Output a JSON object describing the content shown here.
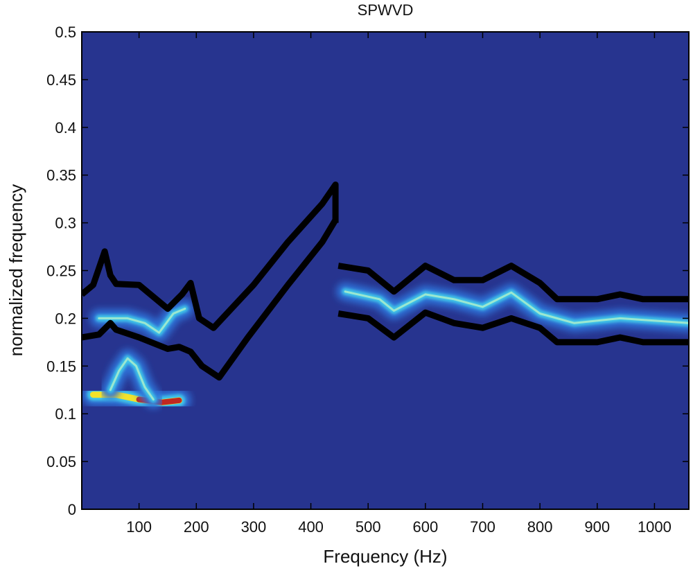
{
  "chart_data": {
    "type": "heatmap",
    "title": "SPWVD",
    "xlabel": "Frequency (Hz)",
    "ylabel": "normalized frequency",
    "xlim": [
      0,
      1060
    ],
    "ylim": [
      0,
      0.5
    ],
    "xticks": [
      100,
      200,
      300,
      400,
      500,
      600,
      700,
      800,
      900,
      1000
    ],
    "xtick_labels": [
      "100",
      "200",
      "300",
      "400",
      "500",
      "600",
      "700",
      "800",
      "900",
      "1000"
    ],
    "yticks": [
      0,
      0.05,
      0.1,
      0.15,
      0.2,
      0.25,
      0.3,
      0.35,
      0.4,
      0.45,
      0.5
    ],
    "ytick_labels": [
      "0",
      "0.05",
      "0.1",
      "0.15",
      "0.2",
      "0.25",
      "0.3",
      "0.35",
      "0.4",
      "0.45",
      "0.5"
    ],
    "colormap": "jet",
    "background_color": "#27348f",
    "grid": false,
    "energy_ridges": [
      {
        "points": [
          [
            20,
            0.12
          ],
          [
            60,
            0.12
          ],
          [
            100,
            0.115
          ],
          [
            140,
            0.112
          ],
          [
            170,
            0.114
          ]
        ],
        "intensity": 1.0
      },
      {
        "points": [
          [
            50,
            0.125
          ],
          [
            65,
            0.145
          ],
          [
            80,
            0.158
          ],
          [
            95,
            0.15
          ],
          [
            110,
            0.128
          ],
          [
            125,
            0.115
          ]
        ],
        "intensity": 0.55
      },
      {
        "points": [
          [
            30,
            0.2
          ],
          [
            80,
            0.2
          ],
          [
            110,
            0.195
          ],
          [
            135,
            0.185
          ],
          [
            160,
            0.205
          ],
          [
            180,
            0.21
          ]
        ],
        "intensity": 0.5
      },
      {
        "points": [
          [
            460,
            0.228
          ],
          [
            520,
            0.22
          ],
          [
            545,
            0.208
          ],
          [
            600,
            0.225
          ],
          [
            650,
            0.22
          ],
          [
            700,
            0.212
          ],
          [
            750,
            0.227
          ],
          [
            800,
            0.205
          ],
          [
            860,
            0.195
          ],
          [
            940,
            0.2
          ],
          [
            1060,
            0.195
          ]
        ],
        "intensity": 0.45
      }
    ],
    "boundary_curves": [
      {
        "points": [
          [
            0,
            0.225
          ],
          [
            20,
            0.235
          ],
          [
            40,
            0.27
          ],
          [
            50,
            0.245
          ],
          [
            60,
            0.236
          ],
          [
            100,
            0.235
          ],
          [
            150,
            0.21
          ],
          [
            175,
            0.225
          ],
          [
            190,
            0.237
          ],
          [
            205,
            0.2
          ],
          [
            230,
            0.19
          ],
          [
            300,
            0.235
          ],
          [
            360,
            0.28
          ],
          [
            420,
            0.32
          ],
          [
            443,
            0.34
          ],
          [
            443,
            0.3
          ]
        ]
      },
      {
        "points": [
          [
            0,
            0.18
          ],
          [
            30,
            0.183
          ],
          [
            50,
            0.195
          ],
          [
            60,
            0.188
          ],
          [
            100,
            0.18
          ],
          [
            150,
            0.168
          ],
          [
            170,
            0.17
          ],
          [
            190,
            0.165
          ],
          [
            210,
            0.15
          ],
          [
            240,
            0.138
          ],
          [
            290,
            0.18
          ],
          [
            360,
            0.235
          ],
          [
            420,
            0.28
          ],
          [
            443,
            0.303
          ]
        ]
      },
      {
        "points": [
          [
            448,
            0.255
          ],
          [
            500,
            0.25
          ],
          [
            545,
            0.228
          ],
          [
            600,
            0.255
          ],
          [
            650,
            0.24
          ],
          [
            700,
            0.24
          ],
          [
            750,
            0.255
          ],
          [
            800,
            0.237
          ],
          [
            830,
            0.22
          ],
          [
            900,
            0.22
          ],
          [
            940,
            0.225
          ],
          [
            980,
            0.22
          ],
          [
            1060,
            0.22
          ]
        ]
      },
      {
        "points": [
          [
            448,
            0.205
          ],
          [
            500,
            0.2
          ],
          [
            545,
            0.18
          ],
          [
            600,
            0.206
          ],
          [
            650,
            0.195
          ],
          [
            700,
            0.19
          ],
          [
            750,
            0.2
          ],
          [
            800,
            0.19
          ],
          [
            830,
            0.175
          ],
          [
            900,
            0.175
          ],
          [
            940,
            0.18
          ],
          [
            980,
            0.175
          ],
          [
            1060,
            0.175
          ]
        ]
      }
    ]
  }
}
